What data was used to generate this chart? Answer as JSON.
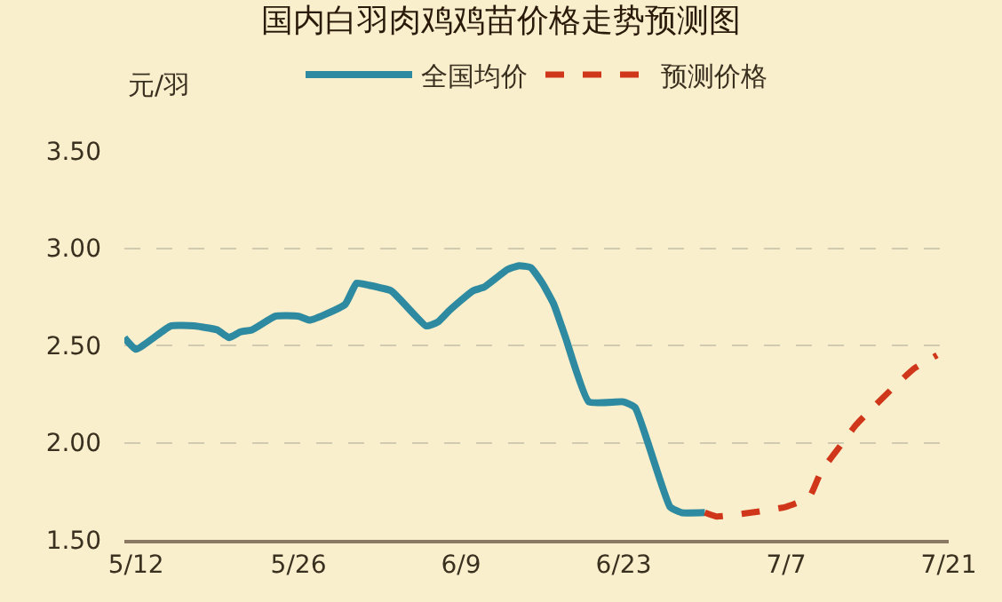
{
  "chart_data": {
    "type": "line",
    "title": "国内白羽肉鸡鸡苗价格走势预测图",
    "ylabel": "元/羽",
    "series": [
      {
        "name": "全国均价",
        "color": "#2e8aa0",
        "line_style": "solid",
        "x": [
          "--05-11",
          "--05-12",
          "--05-15",
          "--05-17",
          "--05-19",
          "--05-20",
          "--05-21",
          "--05-22",
          "--05-24",
          "--05-26",
          "--05-27",
          "--05-30",
          "--05-31",
          "--06-01",
          "--06-03",
          "--06-06",
          "--06-07",
          "--06-08",
          "--06-10",
          "--06-11",
          "--06-13",
          "--06-14",
          "--06-15",
          "--06-16",
          "--06-17",
          "--06-18",
          "--06-20",
          "--06-23",
          "--06-24",
          "--06-27",
          "--06-28",
          "--06-30"
        ],
        "values": [
          2.54,
          2.48,
          2.6,
          2.6,
          2.58,
          2.54,
          2.57,
          2.58,
          2.65,
          2.65,
          2.63,
          2.71,
          2.82,
          2.81,
          2.78,
          2.6,
          2.62,
          2.68,
          2.78,
          2.8,
          2.89,
          2.91,
          2.9,
          2.82,
          2.71,
          2.54,
          2.21,
          2.21,
          2.18,
          1.67,
          1.64,
          1.64
        ]
      },
      {
        "name": "预测价格",
        "color": "#d0361a",
        "line_style": "dashed",
        "x": [
          "--06-30",
          "--07-01",
          "--07-04",
          "--07-07",
          "--07-09",
          "--07-10",
          "--07-12",
          "--07-13",
          "--07-16",
          "--07-18",
          "--07-20"
        ],
        "values": [
          1.64,
          1.62,
          1.64,
          1.67,
          1.72,
          1.85,
          2.01,
          2.09,
          2.27,
          2.38,
          2.45
        ]
      }
    ],
    "xlim": [
      "--05-11",
      "--07-21"
    ],
    "xticks": [
      {
        "value": "--05-12",
        "label": "5/12"
      },
      {
        "value": "--05-26",
        "label": "5/26"
      },
      {
        "value": "--06-09",
        "label": "6/9"
      },
      {
        "value": "--06-23",
        "label": "6/23"
      },
      {
        "value": "--07-07",
        "label": "7/7"
      },
      {
        "value": "--07-21",
        "label": "7/21"
      }
    ],
    "ylim": [
      1.5,
      3.5
    ],
    "yticks": [
      {
        "value": 1.5,
        "label": "1.50"
      },
      {
        "value": 2.0,
        "label": "2.00"
      },
      {
        "value": 2.5,
        "label": "2.50"
      },
      {
        "value": 3.0,
        "label": "3.00"
      },
      {
        "value": 3.5,
        "label": "3.50"
      }
    ],
    "grid": "y",
    "legend": "top",
    "marker": "none"
  }
}
